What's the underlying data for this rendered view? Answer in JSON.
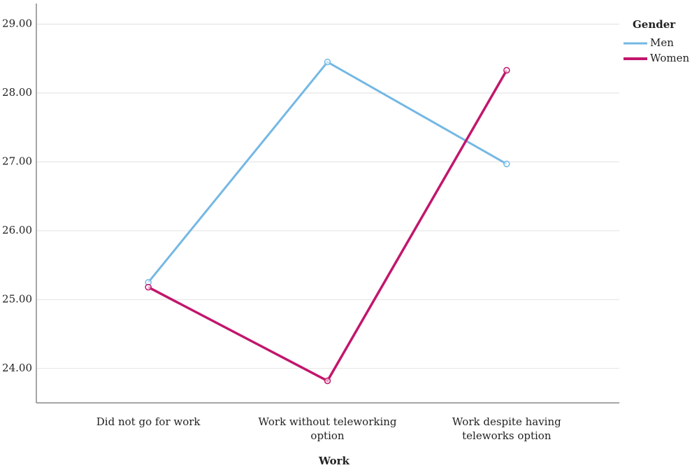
{
  "chart_data": {
    "type": "line",
    "x_label": "Work",
    "categories": [
      "Did not go for work",
      "Work without teleworking option",
      "Work despite having teleworks option"
    ],
    "series": [
      {
        "name": "Men",
        "color": "#74b8e4",
        "values": [
          25.25,
          28.45,
          26.97
        ]
      },
      {
        "name": "Women",
        "color": "#c2166c",
        "values": [
          25.18,
          23.82,
          28.33
        ]
      }
    ],
    "legend_title": "Gender",
    "ylim": [
      23.5,
      29.3
    ],
    "yticks": [
      {
        "value": 24,
        "label": "24.00"
      },
      {
        "value": 25,
        "label": "25.00"
      },
      {
        "value": 26,
        "label": "26.00"
      },
      {
        "value": 27,
        "label": "27.00"
      },
      {
        "value": 28,
        "label": "28.00"
      },
      {
        "value": 29,
        "label": "29.00"
      }
    ],
    "grid": true
  }
}
